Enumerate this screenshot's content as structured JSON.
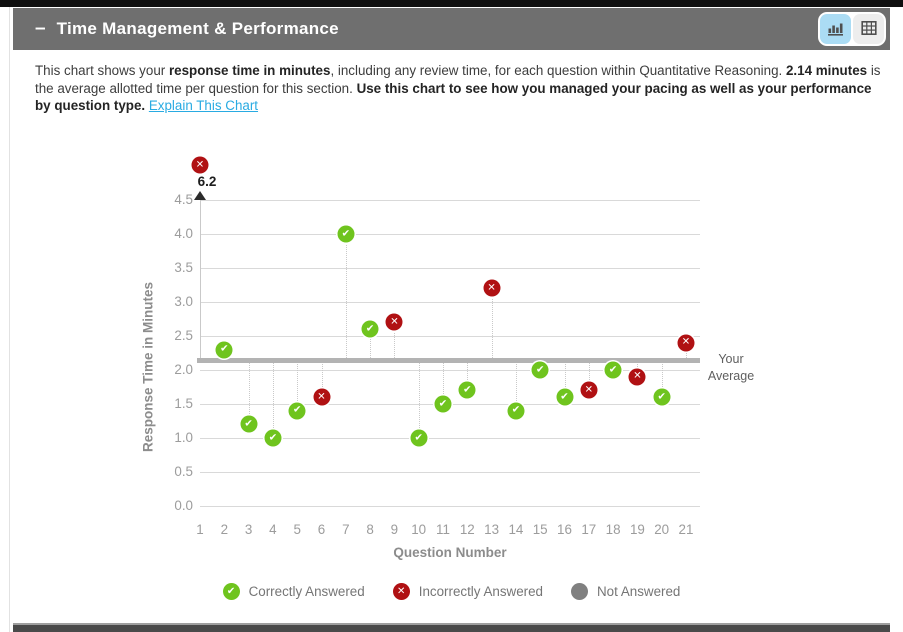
{
  "header": {
    "collapse_indicator": "–",
    "title": "Time Management & Performance",
    "active_view": "chart"
  },
  "description": {
    "segments": [
      {
        "text": "This chart shows your ",
        "style": "normal"
      },
      {
        "text": "response time in minutes",
        "style": "bold"
      },
      {
        "text": ", including any review time, for each question within Quantitative Reasoning. ",
        "style": "normal"
      },
      {
        "text": "2.14 minutes",
        "style": "bold"
      },
      {
        "text": " is the average allotted time per question for this section. ",
        "style": "normal"
      },
      {
        "text": "Use this chart to see how you managed your pacing as well as your performance by question type.",
        "style": "bold"
      },
      {
        "text": " ",
        "style": "normal"
      },
      {
        "text": "Explain This Chart",
        "style": "link"
      }
    ]
  },
  "chart_data": {
    "type": "scatter",
    "xlabel": "Question Number",
    "ylabel": "Response Time in Minutes",
    "ylim": [
      0,
      4.5
    ],
    "ytick_step": 0.5,
    "grid": true,
    "average": {
      "value": 2.14,
      "label": "Your Average"
    },
    "points": [
      {
        "q": 1,
        "minutes": 6.2,
        "status": "incorrect"
      },
      {
        "q": 2,
        "minutes": 2.3,
        "status": "correct"
      },
      {
        "q": 3,
        "minutes": 1.2,
        "status": "correct"
      },
      {
        "q": 4,
        "minutes": 1.0,
        "status": "correct"
      },
      {
        "q": 5,
        "minutes": 1.4,
        "status": "correct"
      },
      {
        "q": 6,
        "minutes": 1.6,
        "status": "incorrect"
      },
      {
        "q": 7,
        "minutes": 4.0,
        "status": "correct"
      },
      {
        "q": 8,
        "minutes": 2.6,
        "status": "correct"
      },
      {
        "q": 9,
        "minutes": 2.7,
        "status": "incorrect"
      },
      {
        "q": 10,
        "minutes": 1.0,
        "status": "correct"
      },
      {
        "q": 11,
        "minutes": 1.5,
        "status": "correct"
      },
      {
        "q": 12,
        "minutes": 1.7,
        "status": "correct"
      },
      {
        "q": 13,
        "minutes": 3.2,
        "status": "incorrect"
      },
      {
        "q": 14,
        "minutes": 1.4,
        "status": "correct"
      },
      {
        "q": 15,
        "minutes": 2.0,
        "status": "correct"
      },
      {
        "q": 16,
        "minutes": 1.6,
        "status": "correct"
      },
      {
        "q": 17,
        "minutes": 1.7,
        "status": "incorrect"
      },
      {
        "q": 18,
        "minutes": 2.0,
        "status": "correct"
      },
      {
        "q": 19,
        "minutes": 1.9,
        "status": "incorrect"
      },
      {
        "q": 20,
        "minutes": 1.6,
        "status": "correct"
      },
      {
        "q": 21,
        "minutes": 2.4,
        "status": "incorrect"
      }
    ],
    "legend": [
      {
        "status": "correct",
        "label": "Correctly Answered"
      },
      {
        "status": "incorrect",
        "label": "Incorrectly Answered"
      },
      {
        "status": "not_answered",
        "label": "Not Answered"
      }
    ]
  },
  "colors": {
    "correct": "#6fc41e",
    "incorrect": "#b01113",
    "not_answered": "#808080",
    "average_line": "#b3b3b3",
    "gridline": "#d9d9d9",
    "stem": "#c9c9c9",
    "link": "#29abe2",
    "header_bg": "#6f6f6f",
    "toggle_active_bg": "#abdcf4",
    "toggle_inactive_bg": "#ededed",
    "icon": "#4f4f4f"
  }
}
